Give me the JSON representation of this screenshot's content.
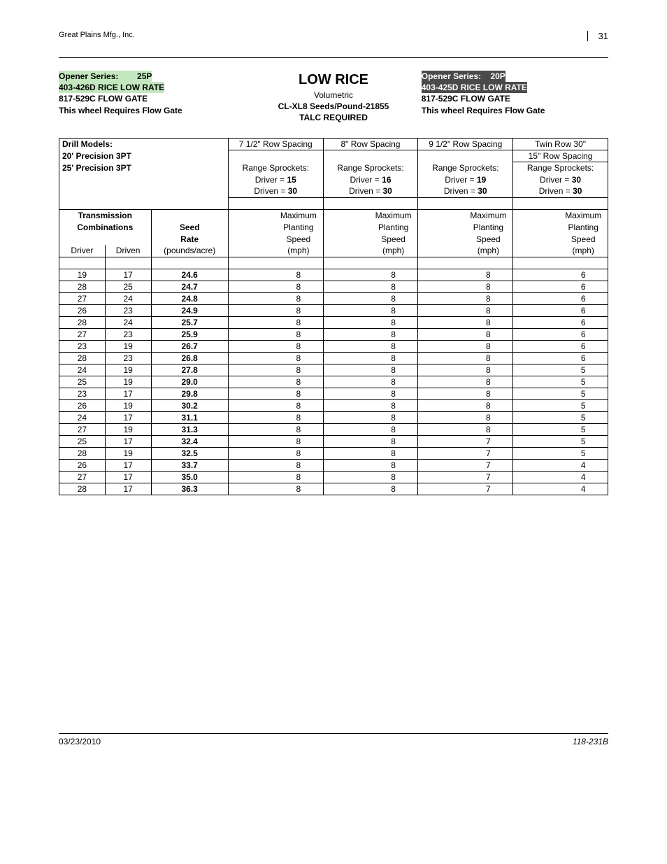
{
  "header": {
    "company": "Great Plains Mfg., Inc.",
    "page_number": "31"
  },
  "left_block": {
    "line1": "Opener Series:        25P",
    "line2": "403-426D RICE LOW RATE",
    "line3": "817-529C FLOW GATE",
    "line4": "This wheel Requires Flow Gate"
  },
  "mid_block": {
    "title": "LOW RICE",
    "line2": "Volumetric",
    "line3": "CL-XL8 Seeds/Pound-21855",
    "line4": "TALC REQUIRED"
  },
  "right_block": {
    "line1": "Opener Series:    20P",
    "line2": "403-425D RICE LOW RATE",
    "line3": "817-529C FLOW GATE",
    "line4": "This wheel Requires Flow Gate"
  },
  "table": {
    "drill_models_label": "Drill Models:",
    "model_a": "20' Precision 3PT",
    "model_b": "25' Precision 3PT",
    "spacing_labels": [
      "7 1/2\" Row Spacing",
      "8\" Row Spacing",
      "9 1/2\" Row Spacing",
      "Twin Row 30\""
    ],
    "twin_sub": "15\" Row Spacing",
    "range_label": "Range Sprockets:",
    "drivers": [
      "Driver = 15",
      "Driver = 16",
      "Driver = 19",
      "Driver = 30"
    ],
    "drivens": [
      "Driven = 30",
      "Driven = 30",
      "Driven = 30",
      "Driven = 30"
    ],
    "driver_nums": [
      "15",
      "16",
      "19",
      "30"
    ],
    "driven_nums": [
      "30",
      "30",
      "30",
      "30"
    ],
    "col_headers": {
      "trans": "Transmission",
      "comb": "Combinations",
      "driver": "Driver",
      "driven": "Driven",
      "seed_rate1": "Seed",
      "seed_rate2": "Rate",
      "seed_rate3": "(pounds/acre)",
      "mps1": "Maximum",
      "mps2": "Planting",
      "mps3": "Speed",
      "mps4": "(mph)"
    },
    "rows": [
      {
        "driver": "19",
        "driven": "17",
        "rate": "24.6",
        "s": [
          "8",
          "8",
          "8",
          "6"
        ]
      },
      {
        "driver": "28",
        "driven": "25",
        "rate": "24.7",
        "s": [
          "8",
          "8",
          "8",
          "6"
        ]
      },
      {
        "driver": "27",
        "driven": "24",
        "rate": "24.8",
        "s": [
          "8",
          "8",
          "8",
          "6"
        ]
      },
      {
        "driver": "26",
        "driven": "23",
        "rate": "24.9",
        "s": [
          "8",
          "8",
          "8",
          "6"
        ]
      },
      {
        "driver": "28",
        "driven": "24",
        "rate": "25.7",
        "s": [
          "8",
          "8",
          "8",
          "6"
        ]
      },
      {
        "driver": "27",
        "driven": "23",
        "rate": "25.9",
        "s": [
          "8",
          "8",
          "8",
          "6"
        ]
      },
      {
        "driver": "23",
        "driven": "19",
        "rate": "26.7",
        "s": [
          "8",
          "8",
          "8",
          "6"
        ]
      },
      {
        "driver": "28",
        "driven": "23",
        "rate": "26.8",
        "s": [
          "8",
          "8",
          "8",
          "6"
        ]
      },
      {
        "driver": "24",
        "driven": "19",
        "rate": "27.8",
        "s": [
          "8",
          "8",
          "8",
          "5"
        ]
      },
      {
        "driver": "25",
        "driven": "19",
        "rate": "29.0",
        "s": [
          "8",
          "8",
          "8",
          "5"
        ]
      },
      {
        "driver": "23",
        "driven": "17",
        "rate": "29.8",
        "s": [
          "8",
          "8",
          "8",
          "5"
        ]
      },
      {
        "driver": "26",
        "driven": "19",
        "rate": "30.2",
        "s": [
          "8",
          "8",
          "8",
          "5"
        ]
      },
      {
        "driver": "24",
        "driven": "17",
        "rate": "31.1",
        "s": [
          "8",
          "8",
          "8",
          "5"
        ]
      },
      {
        "driver": "27",
        "driven": "19",
        "rate": "31.3",
        "s": [
          "8",
          "8",
          "8",
          "5"
        ]
      },
      {
        "driver": "25",
        "driven": "17",
        "rate": "32.4",
        "s": [
          "8",
          "8",
          "7",
          "5"
        ]
      },
      {
        "driver": "28",
        "driven": "19",
        "rate": "32.5",
        "s": [
          "8",
          "8",
          "7",
          "5"
        ]
      },
      {
        "driver": "26",
        "driven": "17",
        "rate": "33.7",
        "s": [
          "8",
          "8",
          "7",
          "4"
        ]
      },
      {
        "driver": "27",
        "driven": "17",
        "rate": "35.0",
        "s": [
          "8",
          "8",
          "7",
          "4"
        ]
      },
      {
        "driver": "28",
        "driven": "17",
        "rate": "36.3",
        "s": [
          "8",
          "8",
          "7",
          "4"
        ]
      }
    ]
  },
  "footer": {
    "date": "03/23/2010",
    "doc": "118-231B"
  }
}
